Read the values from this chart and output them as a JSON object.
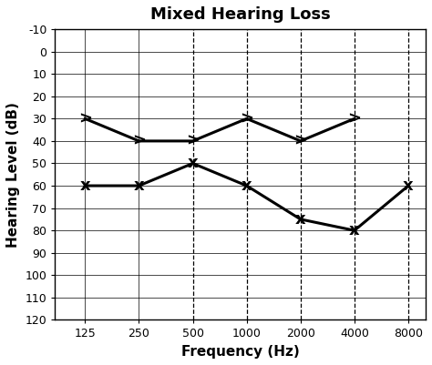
{
  "title": "Mixed Hearing Loss",
  "xlabel": "Frequency (Hz)",
  "ylabel": "Hearing Level (dB)",
  "frequencies_x": [
    125,
    250,
    500,
    1000,
    2000,
    4000,
    8000
  ],
  "air_conduction_freqs": [
    125,
    250,
    500,
    1000,
    2000,
    4000
  ],
  "air_conduction_values": [
    30,
    40,
    40,
    30,
    40,
    30
  ],
  "bone_conduction_freqs": [
    125,
    250,
    500,
    1000,
    2000,
    4000,
    8000
  ],
  "bone_conduction_values": [
    60,
    60,
    50,
    60,
    75,
    80,
    60
  ],
  "solid_vlines": [
    125,
    250
  ],
  "dashed_vlines": [
    500,
    1000,
    2000,
    4000,
    8000
  ],
  "ylim_min": -10,
  "ylim_max": 120,
  "yticks": [
    -10,
    0,
    10,
    20,
    30,
    40,
    50,
    60,
    70,
    80,
    90,
    100,
    110,
    120
  ],
  "line_color": "black",
  "line_width": 2.2,
  "background_color": "#ffffff",
  "title_fontsize": 13,
  "axis_label_fontsize": 11
}
